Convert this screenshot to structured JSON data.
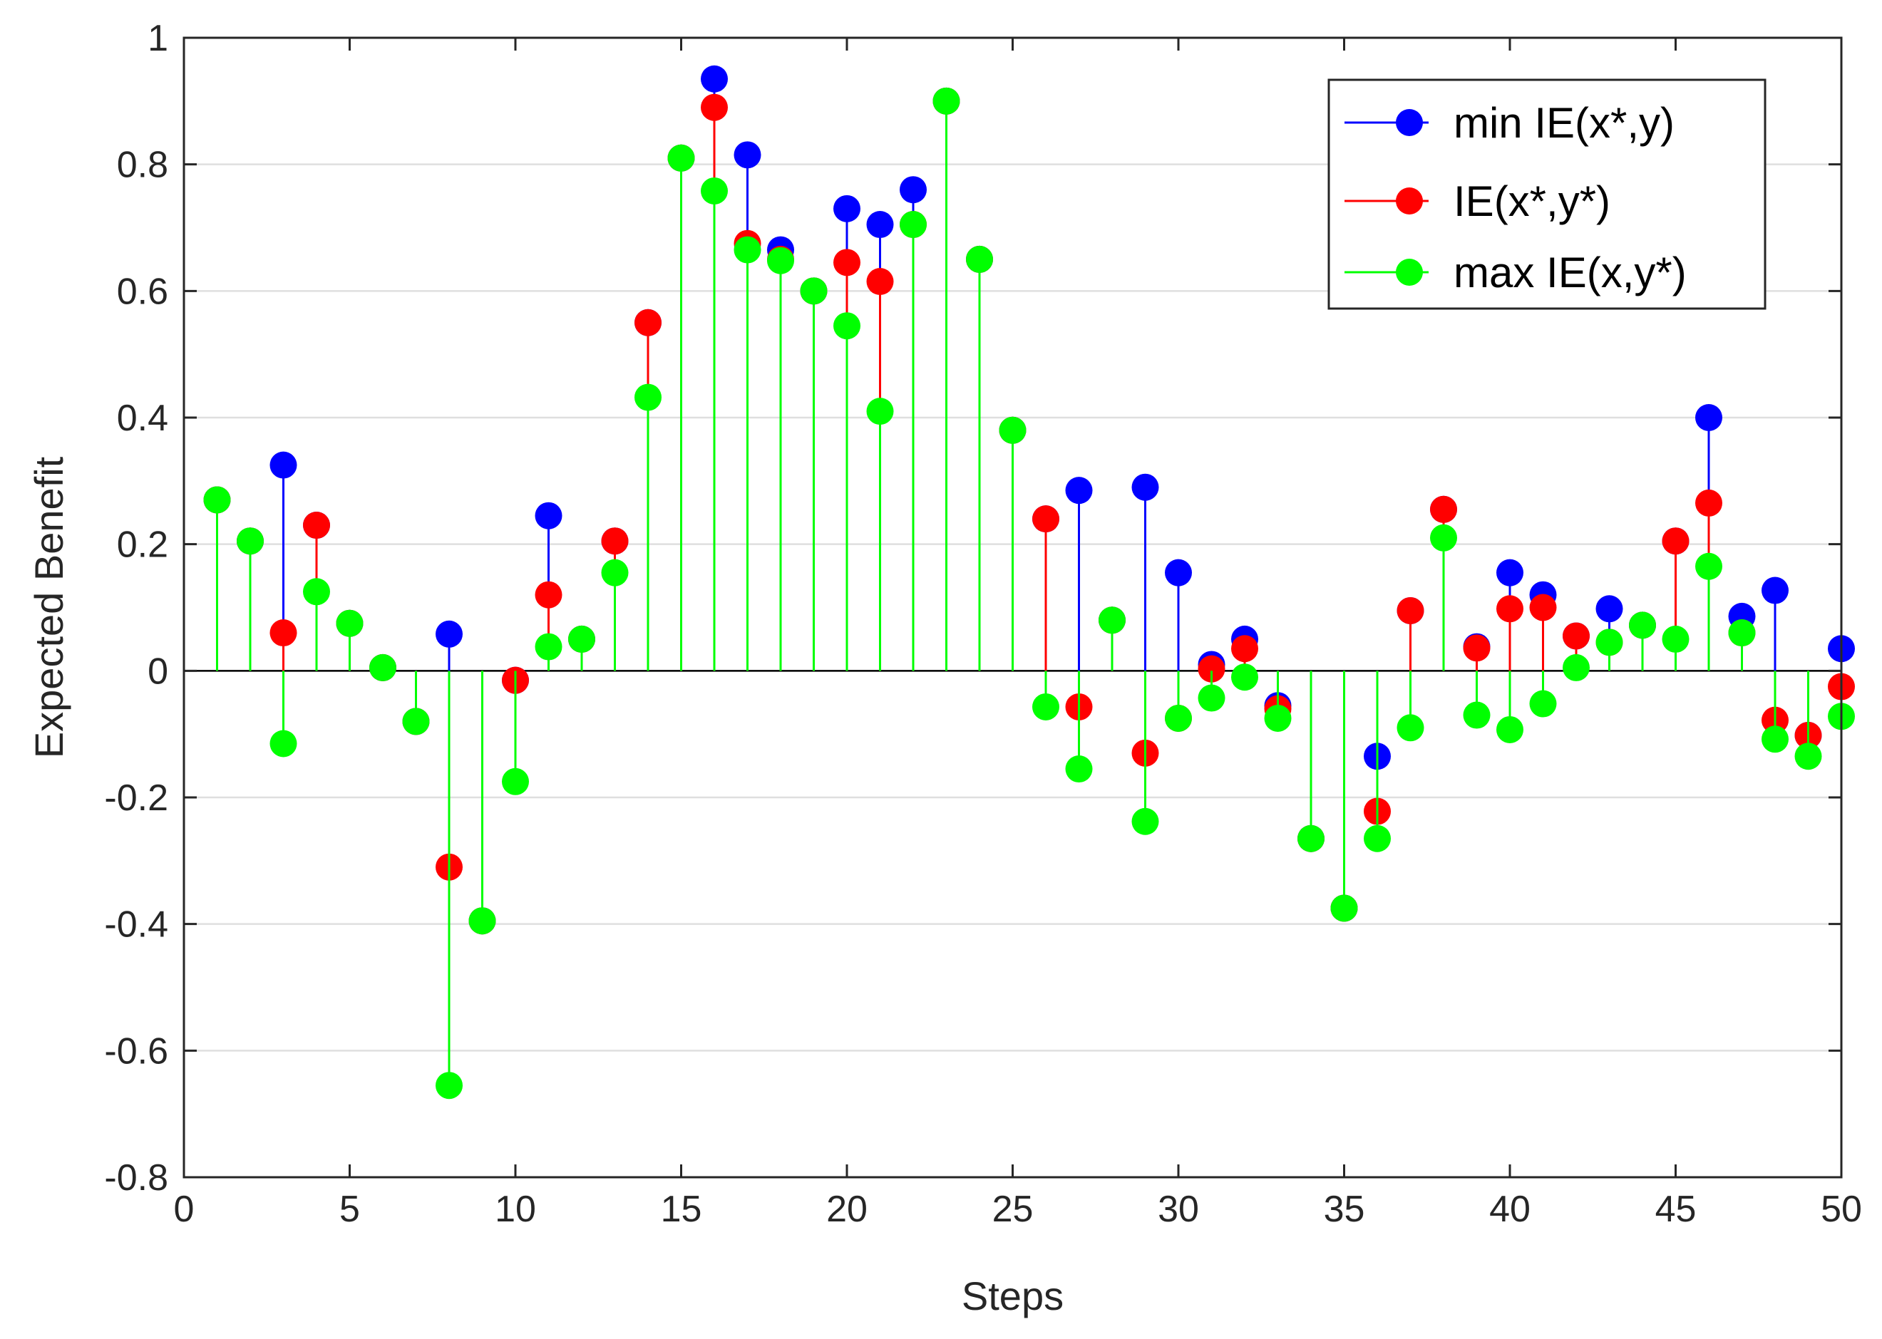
{
  "chart_data": {
    "type": "stem",
    "title": "",
    "xlabel": "Steps",
    "ylabel": "Expected Benefit",
    "xlim": [
      0,
      50
    ],
    "ylim": [
      -0.8,
      1
    ],
    "xticks": [
      0,
      5,
      10,
      15,
      20,
      25,
      30,
      35,
      40,
      45,
      50
    ],
    "yticks": [
      -0.8,
      -0.6,
      -0.4,
      -0.2,
      0,
      0.2,
      0.4,
      0.6,
      0.8,
      1
    ],
    "xtick_labels": [
      "0",
      "5",
      "10",
      "15",
      "20",
      "25",
      "30",
      "35",
      "40",
      "45",
      "50"
    ],
    "ytick_labels": [
      "-0.8",
      "-0.6",
      "-0.4",
      "-0.2",
      "0",
      "0.2",
      "0.4",
      "0.6",
      "0.8",
      "1"
    ],
    "grid": "horizontal",
    "legend_position": "top-right",
    "x": [
      1,
      2,
      3,
      4,
      5,
      6,
      7,
      8,
      9,
      10,
      11,
      12,
      13,
      14,
      15,
      16,
      17,
      18,
      19,
      20,
      21,
      22,
      23,
      24,
      25,
      26,
      27,
      28,
      29,
      30,
      31,
      32,
      33,
      34,
      35,
      36,
      37,
      38,
      39,
      40,
      41,
      42,
      43,
      44,
      45,
      46,
      47,
      48,
      49,
      50
    ],
    "series": [
      {
        "name": "min IE(x*,y)",
        "color": "#0000ff",
        "values": [
          0.27,
          0.205,
          0.325,
          0.23,
          0.075,
          0.005,
          -0.08,
          0.058,
          -0.395,
          -0.015,
          0.245,
          0.05,
          0.205,
          0.55,
          0.81,
          0.935,
          0.815,
          0.665,
          0.6,
          0.73,
          0.705,
          0.76,
          0.9,
          0.65,
          0.38,
          0.24,
          0.285,
          0.08,
          0.29,
          0.155,
          0.01,
          0.05,
          -0.055,
          -0.265,
          -0.375,
          -0.135,
          0.095,
          0.255,
          0.038,
          0.155,
          0.12,
          0.055,
          0.098,
          0.072,
          0.205,
          0.4,
          0.086,
          0.127,
          -0.102,
          0.035
        ]
      },
      {
        "name": "IE(x*,y*)",
        "color": "#ff0000",
        "values": [
          0.27,
          0.205,
          0.06,
          0.23,
          0.075,
          0.005,
          -0.08,
          -0.31,
          -0.395,
          -0.015,
          0.12,
          0.05,
          0.205,
          0.55,
          0.81,
          0.89,
          0.675,
          0.65,
          0.6,
          0.645,
          0.615,
          0.705,
          0.9,
          0.65,
          0.38,
          0.24,
          -0.057,
          0.08,
          -0.13,
          -0.075,
          0.003,
          0.035,
          -0.06,
          -0.265,
          -0.375,
          -0.222,
          0.095,
          0.255,
          0.036,
          0.098,
          0.1,
          0.055,
          0.045,
          0.072,
          0.205,
          0.265,
          0.06,
          -0.078,
          -0.102,
          -0.025
        ]
      },
      {
        "name": "max IE(x,y*)",
        "color": "#00ff00",
        "values": [
          0.27,
          0.205,
          -0.115,
          0.125,
          0.075,
          0.005,
          -0.08,
          -0.655,
          -0.395,
          -0.175,
          0.038,
          0.05,
          0.155,
          0.432,
          0.81,
          0.758,
          0.665,
          0.648,
          0.6,
          0.545,
          0.41,
          0.705,
          0.9,
          0.65,
          0.38,
          -0.057,
          -0.155,
          0.08,
          -0.238,
          -0.075,
          -0.043,
          -0.01,
          -0.075,
          -0.265,
          -0.375,
          -0.265,
          -0.09,
          0.21,
          -0.07,
          -0.093,
          -0.052,
          0.005,
          0.045,
          0.072,
          0.05,
          0.165,
          0.06,
          -0.108,
          -0.135,
          -0.072
        ]
      }
    ]
  },
  "legend": {
    "entries": [
      "min IE(x*,y)",
      "IE(x*,y*)",
      "max IE(x,y*)"
    ]
  }
}
